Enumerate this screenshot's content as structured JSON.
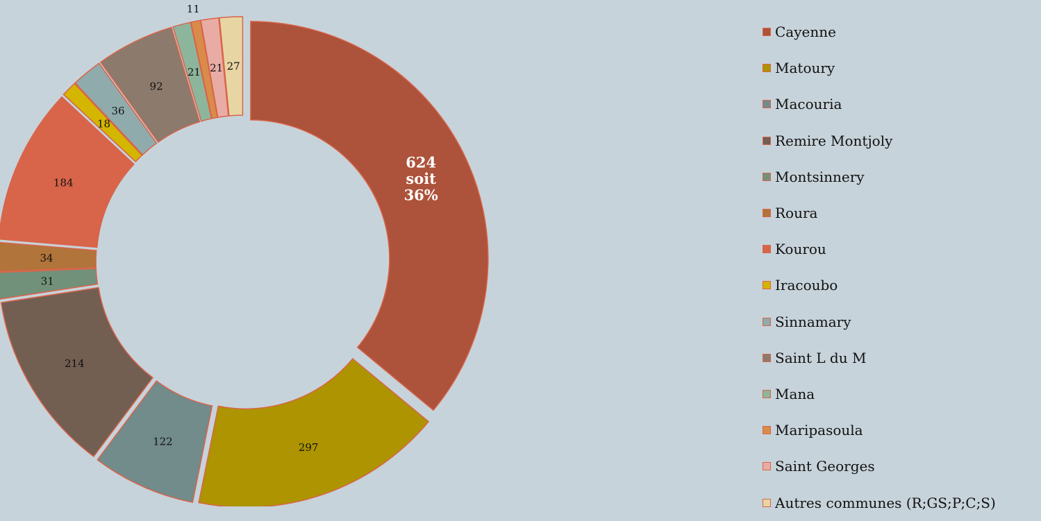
{
  "chart_data": {
    "type": "pie",
    "style": "exploded donut",
    "categories": [
      "Cayenne",
      "Matoury",
      "Macouria",
      "Remire Montjoly",
      "Montsinnery",
      "Roura",
      "Kourou",
      "Iracoubo",
      "Sinnamary",
      "Saint L du M",
      "Mana",
      "Maripasoula",
      "Saint Georges",
      "Autres communes (R;GS;P;C;S)"
    ],
    "values": [
      624,
      297,
      122,
      214,
      31,
      34,
      184,
      18,
      36,
      92,
      21,
      11,
      21,
      27
    ],
    "data_labels": [
      "624\nsoit\n36%",
      "297",
      "122",
      "214",
      "31",
      "34",
      "184",
      "18",
      "36",
      "92",
      "21",
      "11",
      "21",
      "27"
    ],
    "colors": [
      "#ad523b",
      "#ad9400",
      "#728b8b",
      "#735e52",
      "#71917a",
      "#b1743a",
      "#d8644a",
      "#d4b500",
      "#8fabab",
      "#8c7a6d",
      "#8db59c",
      "#d98c4a",
      "#e8aca4",
      "#e8d5a4"
    ],
    "edge_color": "#d9644a",
    "legend_position": "right"
  }
}
